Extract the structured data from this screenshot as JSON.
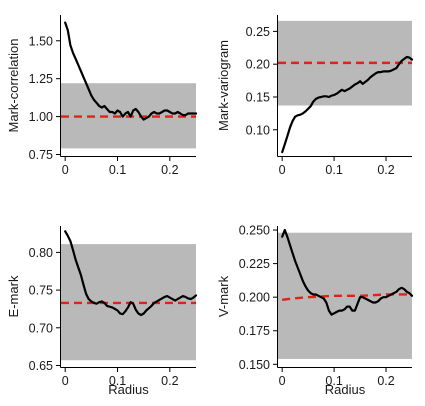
{
  "chart_data": [
    {
      "type": "line",
      "panel": "top-left",
      "ylabel": "Mark-correlation",
      "xlabel": "",
      "xlim": [
        -0.008,
        0.25
      ],
      "ylim": [
        0.74,
        1.67
      ],
      "xticks": [
        0,
        0.1,
        0.2
      ],
      "xtick_labels": [
        "0",
        "0.1",
        "0.2"
      ],
      "yticks": [
        0.75,
        1.0,
        1.25,
        1.5
      ],
      "ytick_labels": [
        "0.75",
        "1.00",
        "1.25",
        "1.50"
      ],
      "envelope": {
        "lower": 0.79,
        "upper": 1.22
      },
      "reference": {
        "y": 1.0,
        "color": "#e32119",
        "style": "dashed"
      },
      "series": [
        {
          "color": "#000000",
          "x": [
            0,
            0.005,
            0.01,
            0.015,
            0.02,
            0.025,
            0.03,
            0.035,
            0.04,
            0.045,
            0.05,
            0.055,
            0.06,
            0.065,
            0.07,
            0.075,
            0.08,
            0.085,
            0.09,
            0.095,
            0.1,
            0.105,
            0.11,
            0.115,
            0.12,
            0.125,
            0.13,
            0.135,
            0.14,
            0.145,
            0.15,
            0.155,
            0.16,
            0.165,
            0.17,
            0.175,
            0.18,
            0.185,
            0.19,
            0.195,
            0.2,
            0.205,
            0.21,
            0.215,
            0.22,
            0.225,
            0.23,
            0.235,
            0.24,
            0.245,
            0.25
          ],
          "y": [
            1.62,
            1.57,
            1.47,
            1.42,
            1.38,
            1.34,
            1.3,
            1.26,
            1.22,
            1.18,
            1.14,
            1.11,
            1.09,
            1.07,
            1.06,
            1.07,
            1.05,
            1.03,
            1.03,
            1.02,
            1.04,
            1.03,
            1.0,
            1.02,
            1.03,
            1.0,
            1.04,
            1.05,
            1.03,
            1.0,
            0.98,
            0.99,
            1.0,
            1.02,
            1.03,
            1.02,
            1.02,
            1.03,
            1.04,
            1.04,
            1.03,
            1.02,
            1.02,
            1.03,
            1.02,
            1.01,
            1.01,
            1.02,
            1.02,
            1.02,
            1.02
          ]
        }
      ]
    },
    {
      "type": "line",
      "panel": "top-right",
      "ylabel": "Mark-variogram",
      "xlabel": "",
      "xlim": [
        -0.008,
        0.25
      ],
      "ylim": [
        0.06,
        0.275
      ],
      "xticks": [
        0,
        0.1,
        0.2
      ],
      "xtick_labels": [
        "0",
        "0.1",
        "0.2"
      ],
      "yticks": [
        0.1,
        0.15,
        0.2,
        0.25
      ],
      "ytick_labels": [
        "0.10",
        "0.15",
        "0.20",
        "0.25"
      ],
      "envelope": {
        "lower": 0.137,
        "upper": 0.266
      },
      "reference": {
        "y": 0.202,
        "color": "#e32119",
        "style": "dashed"
      },
      "series": [
        {
          "color": "#000000",
          "x": [
            0,
            0.005,
            0.01,
            0.015,
            0.02,
            0.025,
            0.03,
            0.035,
            0.04,
            0.045,
            0.05,
            0.055,
            0.06,
            0.065,
            0.07,
            0.075,
            0.08,
            0.085,
            0.09,
            0.095,
            0.1,
            0.105,
            0.11,
            0.115,
            0.12,
            0.125,
            0.13,
            0.135,
            0.14,
            0.145,
            0.15,
            0.155,
            0.16,
            0.165,
            0.17,
            0.175,
            0.18,
            0.185,
            0.19,
            0.195,
            0.2,
            0.205,
            0.21,
            0.215,
            0.22,
            0.225,
            0.23,
            0.235,
            0.24,
            0.245,
            0.25
          ],
          "y": [
            0.066,
            0.078,
            0.09,
            0.103,
            0.113,
            0.12,
            0.122,
            0.123,
            0.125,
            0.128,
            0.132,
            0.136,
            0.143,
            0.147,
            0.149,
            0.15,
            0.151,
            0.151,
            0.15,
            0.152,
            0.153,
            0.155,
            0.158,
            0.161,
            0.159,
            0.161,
            0.163,
            0.166,
            0.169,
            0.171,
            0.174,
            0.17,
            0.173,
            0.176,
            0.18,
            0.183,
            0.186,
            0.188,
            0.188,
            0.189,
            0.189,
            0.189,
            0.19,
            0.192,
            0.194,
            0.2,
            0.205,
            0.208,
            0.211,
            0.21,
            0.207
          ]
        }
      ]
    },
    {
      "type": "line",
      "panel": "bottom-left",
      "ylabel": "E-mark",
      "xlabel": "Radius",
      "xlim": [
        -0.008,
        0.25
      ],
      "ylim": [
        0.648,
        0.835
      ],
      "xticks": [
        0,
        0.1,
        0.2
      ],
      "xtick_labels": [
        "0",
        "0.1",
        "0.2"
      ],
      "yticks": [
        0.65,
        0.7,
        0.75,
        0.8
      ],
      "ytick_labels": [
        "0.65",
        "0.70",
        "0.75",
        "0.80"
      ],
      "envelope": {
        "lower": 0.657,
        "upper": 0.811
      },
      "reference": {
        "y": 0.733,
        "color": "#e32119",
        "style": "dashed"
      },
      "series": [
        {
          "color": "#000000",
          "x": [
            0,
            0.005,
            0.01,
            0.015,
            0.02,
            0.025,
            0.03,
            0.035,
            0.04,
            0.045,
            0.05,
            0.055,
            0.06,
            0.065,
            0.07,
            0.075,
            0.08,
            0.085,
            0.09,
            0.095,
            0.1,
            0.105,
            0.11,
            0.115,
            0.12,
            0.125,
            0.13,
            0.135,
            0.14,
            0.145,
            0.15,
            0.155,
            0.16,
            0.165,
            0.17,
            0.175,
            0.18,
            0.185,
            0.19,
            0.195,
            0.2,
            0.205,
            0.21,
            0.215,
            0.22,
            0.225,
            0.23,
            0.235,
            0.24,
            0.245,
            0.25
          ],
          "y": [
            0.828,
            0.822,
            0.815,
            0.803,
            0.79,
            0.78,
            0.77,
            0.757,
            0.745,
            0.738,
            0.735,
            0.733,
            0.732,
            0.734,
            0.735,
            0.733,
            0.729,
            0.728,
            0.727,
            0.725,
            0.723,
            0.719,
            0.718,
            0.722,
            0.727,
            0.734,
            0.732,
            0.724,
            0.719,
            0.717,
            0.719,
            0.723,
            0.726,
            0.729,
            0.733,
            0.735,
            0.737,
            0.739,
            0.741,
            0.742,
            0.74,
            0.738,
            0.736,
            0.738,
            0.74,
            0.742,
            0.741,
            0.739,
            0.738,
            0.74,
            0.743
          ]
        }
      ]
    },
    {
      "type": "line",
      "panel": "bottom-right",
      "ylabel": "V-mark",
      "xlabel": "Radius",
      "xlim": [
        -0.008,
        0.25
      ],
      "ylim": [
        0.148,
        0.253
      ],
      "xticks": [
        0,
        0.1,
        0.2
      ],
      "xtick_labels": [
        "0",
        "0.1",
        "0.2"
      ],
      "yticks": [
        0.15,
        0.175,
        0.2,
        0.225,
        0.25
      ],
      "ytick_labels": [
        "0.150",
        "0.175",
        "0.200",
        "0.225",
        "0.250"
      ],
      "envelope": {
        "lower": 0.154,
        "upper": 0.248
      },
      "reference": {
        "color": "#e32119",
        "style": "dashed",
        "x": [
          0,
          0.02,
          0.05,
          0.1,
          0.15,
          0.2,
          0.25
        ],
        "y": [
          0.198,
          0.199,
          0.2,
          0.201,
          0.201,
          0.202,
          0.202
        ]
      },
      "series": [
        {
          "color": "#000000",
          "x": [
            0,
            0.005,
            0.01,
            0.015,
            0.02,
            0.025,
            0.03,
            0.035,
            0.04,
            0.045,
            0.05,
            0.055,
            0.06,
            0.065,
            0.07,
            0.075,
            0.08,
            0.085,
            0.09,
            0.095,
            0.1,
            0.105,
            0.11,
            0.115,
            0.12,
            0.125,
            0.13,
            0.135,
            0.14,
            0.145,
            0.15,
            0.155,
            0.16,
            0.165,
            0.17,
            0.175,
            0.18,
            0.185,
            0.19,
            0.195,
            0.2,
            0.205,
            0.21,
            0.215,
            0.22,
            0.225,
            0.23,
            0.235,
            0.24,
            0.245,
            0.25
          ],
          "y": [
            0.245,
            0.25,
            0.245,
            0.239,
            0.233,
            0.227,
            0.222,
            0.217,
            0.212,
            0.208,
            0.205,
            0.203,
            0.202,
            0.202,
            0.201,
            0.2,
            0.199,
            0.196,
            0.19,
            0.187,
            0.188,
            0.189,
            0.19,
            0.19,
            0.191,
            0.193,
            0.193,
            0.19,
            0.19,
            0.195,
            0.2,
            0.2,
            0.199,
            0.198,
            0.197,
            0.196,
            0.196,
            0.197,
            0.199,
            0.2,
            0.2,
            0.201,
            0.202,
            0.203,
            0.204,
            0.206,
            0.207,
            0.206,
            0.204,
            0.203,
            0.201
          ]
        }
      ]
    }
  ]
}
